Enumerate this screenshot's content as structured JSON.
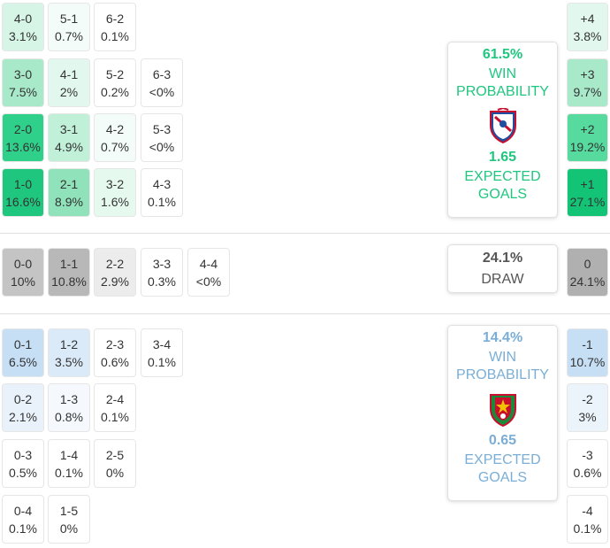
{
  "home_scores": [
    {
      "score": "4-0",
      "prob": "3.1%",
      "bg": "#d6f5e7",
      "col": 0,
      "row": 0
    },
    {
      "score": "5-1",
      "prob": "0.7%",
      "bg": "#f3fcf8",
      "col": 1,
      "row": 0
    },
    {
      "score": "6-2",
      "prob": "0.1%",
      "bg": "#ffffff",
      "col": 2,
      "row": 0
    },
    {
      "score": "3-0",
      "prob": "7.5%",
      "bg": "#a8e9c9",
      "col": 0,
      "row": 1
    },
    {
      "score": "4-1",
      "prob": "2%",
      "bg": "#e2f8ee",
      "col": 1,
      "row": 1
    },
    {
      "score": "5-2",
      "prob": "0.2%",
      "bg": "#ffffff",
      "col": 2,
      "row": 1
    },
    {
      "score": "6-3",
      "prob": "<0%",
      "bg": "#ffffff",
      "col": 3,
      "row": 1
    },
    {
      "score": "2-0",
      "prob": "13.6%",
      "bg": "#2fd08a",
      "col": 0,
      "row": 2
    },
    {
      "score": "3-1",
      "prob": "4.9%",
      "bg": "#c1f0d9",
      "col": 1,
      "row": 2
    },
    {
      "score": "4-2",
      "prob": "0.7%",
      "bg": "#f3fcf8",
      "col": 2,
      "row": 2
    },
    {
      "score": "5-3",
      "prob": "<0%",
      "bg": "#ffffff",
      "col": 3,
      "row": 2
    },
    {
      "score": "1-0",
      "prob": "16.6%",
      "bg": "#1fc77e",
      "col": 0,
      "row": 3
    },
    {
      "score": "2-1",
      "prob": "8.9%",
      "bg": "#8fe2b9",
      "col": 1,
      "row": 3
    },
    {
      "score": "3-2",
      "prob": "1.6%",
      "bg": "#e6f9ef",
      "col": 2,
      "row": 3
    },
    {
      "score": "4-3",
      "prob": "0.1%",
      "bg": "#ffffff",
      "col": 3,
      "row": 3
    }
  ],
  "draw_scores": [
    {
      "score": "0-0",
      "prob": "10%",
      "bg": "#c4c4c4",
      "col": 0
    },
    {
      "score": "1-1",
      "prob": "10.8%",
      "bg": "#b8b8b8",
      "col": 1
    },
    {
      "score": "2-2",
      "prob": "2.9%",
      "bg": "#ececec",
      "col": 2
    },
    {
      "score": "3-3",
      "prob": "0.3%",
      "bg": "#ffffff",
      "col": 3
    },
    {
      "score": "4-4",
      "prob": "<0%",
      "bg": "#ffffff",
      "col": 4
    }
  ],
  "away_scores": [
    {
      "score": "0-1",
      "prob": "6.5%",
      "bg": "#c6dff5",
      "col": 0,
      "row": 0
    },
    {
      "score": "1-2",
      "prob": "3.5%",
      "bg": "#dbeaf8",
      "col": 1,
      "row": 0
    },
    {
      "score": "2-3",
      "prob": "0.6%",
      "bg": "#ffffff",
      "col": 2,
      "row": 0
    },
    {
      "score": "3-4",
      "prob": "0.1%",
      "bg": "#ffffff",
      "col": 3,
      "row": 0
    },
    {
      "score": "0-2",
      "prob": "2.1%",
      "bg": "#e9f2fb",
      "col": 0,
      "row": 1
    },
    {
      "score": "1-3",
      "prob": "0.8%",
      "bg": "#f5f9fd",
      "col": 1,
      "row": 1
    },
    {
      "score": "2-4",
      "prob": "0.1%",
      "bg": "#ffffff",
      "col": 2,
      "row": 1
    },
    {
      "score": "0-3",
      "prob": "0.5%",
      "bg": "#ffffff",
      "col": 0,
      "row": 2
    },
    {
      "score": "1-4",
      "prob": "0.1%",
      "bg": "#ffffff",
      "col": 1,
      "row": 2
    },
    {
      "score": "2-5",
      "prob": "0%",
      "bg": "#ffffff",
      "col": 2,
      "row": 2
    },
    {
      "score": "0-4",
      "prob": "0.1%",
      "bg": "#ffffff",
      "col": 0,
      "row": 3
    },
    {
      "score": "1-5",
      "prob": "0%",
      "bg": "#ffffff",
      "col": 1,
      "row": 3
    }
  ],
  "margins_home": [
    {
      "margin": "+4",
      "prob": "3.8%",
      "bg": "#e2f8ee",
      "row": 0
    },
    {
      "margin": "+3",
      "prob": "9.7%",
      "bg": "#a8e9c9",
      "row": 1
    },
    {
      "margin": "+2",
      "prob": "19.2%",
      "bg": "#56da9e",
      "row": 2
    },
    {
      "margin": "+1",
      "prob": "27.1%",
      "bg": "#14c476",
      "row": 3
    }
  ],
  "margin_draw": {
    "margin": "0",
    "prob": "24.1%",
    "bg": "#b0b0b0"
  },
  "margins_away": [
    {
      "margin": "-1",
      "prob": "10.7%",
      "bg": "#c6dff5",
      "row": 0
    },
    {
      "margin": "-2",
      "prob": "3%",
      "bg": "#ecf4fb",
      "row": 1
    },
    {
      "margin": "-3",
      "prob": "0.6%",
      "bg": "#ffffff",
      "row": 2
    },
    {
      "margin": "-4",
      "prob": "0.1%",
      "bg": "#ffffff",
      "row": 3
    }
  ],
  "home_card": {
    "win_pct": "61.5%",
    "win_label_1": "WIN",
    "win_label_2": "PROBABILITY",
    "xg": "1.65",
    "xg_label_1": "EXPECTED",
    "xg_label_2": "GOALS",
    "color": "#1fc77e",
    "crest_icon": "gil-vicente-crest-icon"
  },
  "draw_card": {
    "pct": "24.1%",
    "label": "DRAW"
  },
  "away_card": {
    "win_pct": "14.4%",
    "win_label_1": "WIN",
    "win_label_2": "PROBABILITY",
    "xg": "0.65",
    "xg_label_1": "EXPECTED",
    "xg_label_2": "GOALS",
    "color": "#7aaed6",
    "crest_icon": "estrela-amadora-crest-icon"
  }
}
